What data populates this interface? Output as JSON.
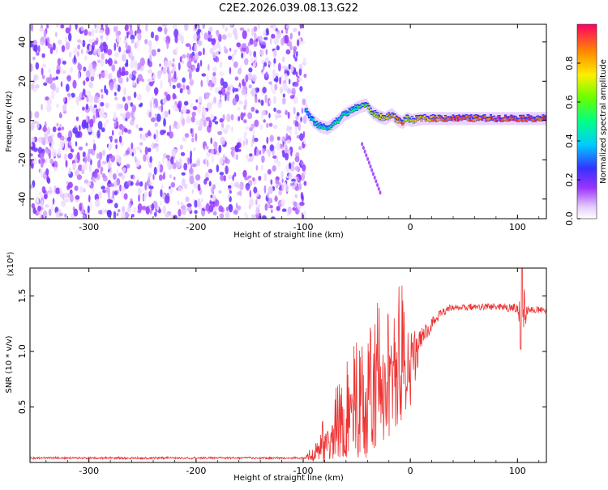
{
  "title": "C2E2.2026.039.08.13.G22",
  "chart_data": [
    {
      "type": "heatmap",
      "xlabel": "Height of straight line (km)",
      "ylabel": "Frequency (Hz)",
      "xlim": [
        -355,
        127
      ],
      "ylim": [
        -50,
        49
      ],
      "xticks": [
        -300,
        -200,
        -100,
        0,
        100
      ],
      "yticks": [
        -40,
        -20,
        0,
        20,
        40
      ],
      "xtick_labels": [
        "-300",
        "-200",
        "-100",
        "0",
        "100"
      ],
      "ytick_labels": [
        "-40",
        "-20",
        "0",
        "20",
        "40"
      ],
      "noise_region_x": [
        -355,
        -98
      ],
      "signal_track": {
        "x": [
          -98,
          -92,
          -85,
          -78,
          -70,
          -62,
          -55,
          -48,
          -42,
          -36,
          -30,
          -24,
          -18,
          -12,
          -8,
          -4,
          0,
          10,
          20,
          40,
          60,
          80,
          100,
          127
        ],
        "freq": [
          5,
          0,
          -3,
          -4,
          -1,
          3,
          5,
          7,
          8,
          4,
          2,
          1,
          3,
          0,
          -1,
          1,
          0,
          1,
          1,
          1,
          1,
          1,
          1,
          1
        ],
        "amplitude": [
          0.35,
          0.4,
          0.45,
          0.4,
          0.45,
          0.5,
          0.5,
          0.55,
          0.6,
          0.65,
          0.7,
          0.75,
          0.8,
          0.8,
          0.85,
          0.6,
          0.7,
          0.8,
          0.85,
          0.9,
          0.9,
          0.9,
          0.9,
          0.9
        ]
      },
      "colorbar": {
        "label": "Normalized spectral amplitude",
        "range": [
          0,
          1
        ],
        "ticks": [
          0.0,
          0.2,
          0.4,
          0.6,
          0.8
        ],
        "tick_labels": [
          "0.0",
          "0.2",
          "0.4",
          "0.6",
          "0.8"
        ]
      }
    },
    {
      "type": "line",
      "xlabel": "Height of straight line (km)",
      "ylabel": "SNR (10 * v/v)",
      "yscale_label": "(x10⁴)",
      "xlim": [
        -355,
        127
      ],
      "ylim": [
        0,
        1.75
      ],
      "xticks": [
        -300,
        -200,
        -100,
        0,
        100
      ],
      "yticks": [
        0.5,
        1.0,
        1.5
      ],
      "xtick_labels": [
        "-300",
        "-200",
        "-100",
        "0",
        "100"
      ],
      "ytick_labels": [
        "0.5",
        "1.0",
        "1.5"
      ],
      "series": [
        {
          "name": "SNR",
          "color": "#ee3333",
          "x": [
            -355,
            -300,
            -250,
            -200,
            -150,
            -100,
            -90,
            -80,
            -70,
            -60,
            -50,
            -40,
            -30,
            -20,
            -10,
            0,
            10,
            20,
            30,
            40,
            60,
            80,
            100,
            104,
            110,
            127
          ],
          "y_base": [
            0.04,
            0.04,
            0.04,
            0.04,
            0.04,
            0.04,
            0.05,
            0.12,
            0.18,
            0.28,
            0.35,
            0.45,
            0.5,
            0.6,
            0.75,
            0.85,
            1.1,
            1.25,
            1.35,
            1.4,
            1.4,
            1.4,
            1.39,
            1.36,
            1.38,
            1.37
          ],
          "y_spread": [
            0.01,
            0.01,
            0.01,
            0.01,
            0.01,
            0.01,
            0.05,
            0.15,
            0.22,
            0.3,
            0.35,
            0.4,
            0.45,
            0.4,
            0.4,
            0.35,
            0.1,
            0.06,
            0.04,
            0.03,
            0.03,
            0.03,
            0.04,
            0.3,
            0.03,
            0.03
          ]
        }
      ]
    }
  ]
}
